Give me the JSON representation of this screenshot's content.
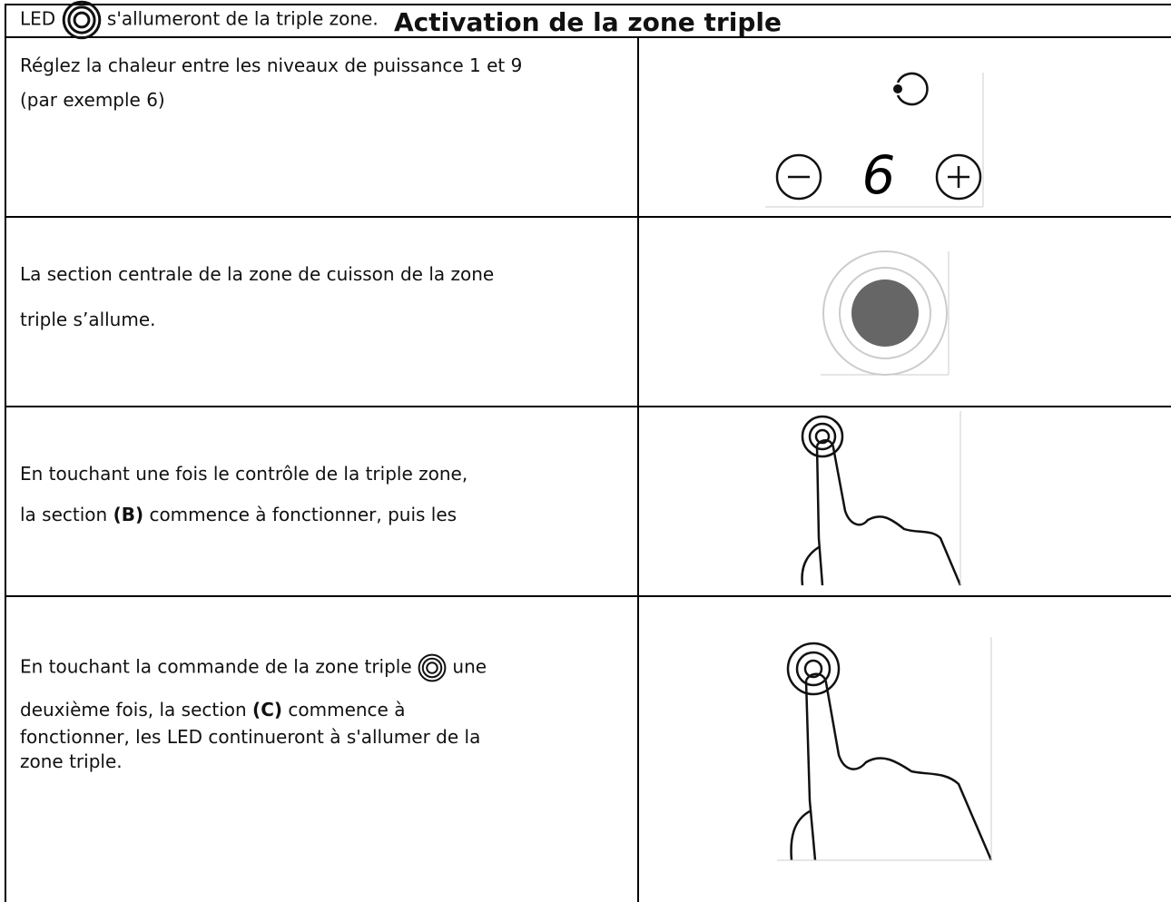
{
  "table": {
    "title": "Activation de la zone triple",
    "rows": [
      {
        "lines": [
          [
            {
              "text": "Réglez la chaleur entre les niveaux de puissance 1 et 9"
            }
          ],
          [
            {
              "text": "(par exemple 6)"
            }
          ]
        ],
        "display": "6"
      },
      {
        "lines": [
          [
            {
              "text": "La section centrale de la zone de cuisson de la zone"
            }
          ],
          [
            {
              "text": "triple s’allume."
            }
          ]
        ]
      },
      {
        "lines": [
          [
            {
              "text": "En touchant une fois le contrôle de la triple zone,"
            }
          ],
          [
            {
              "text": "la section "
            },
            {
              "text": "(B)",
              "bold": true
            },
            {
              "text": " commence à fonctionner, puis les"
            }
          ],
          [
            {
              "text": "LED "
            },
            {
              "icon": true
            },
            {
              "text": " s'allumeront de la triple zone."
            }
          ]
        ]
      },
      {
        "lines": [
          [
            {
              "text": "En touchant la commande de la zone triple "
            },
            {
              "icon": true
            },
            {
              "text": " une"
            }
          ],
          [
            {
              "text": "deuxième fois, la section "
            },
            {
              "text": "(C)",
              "bold": true
            },
            {
              "text": " commence à"
            }
          ],
          [
            {
              "text": "fonctionner, les LED continueront à s'allumer de la"
            }
          ],
          [
            {
              "text": "zone triple."
            }
          ]
        ]
      }
    ]
  }
}
